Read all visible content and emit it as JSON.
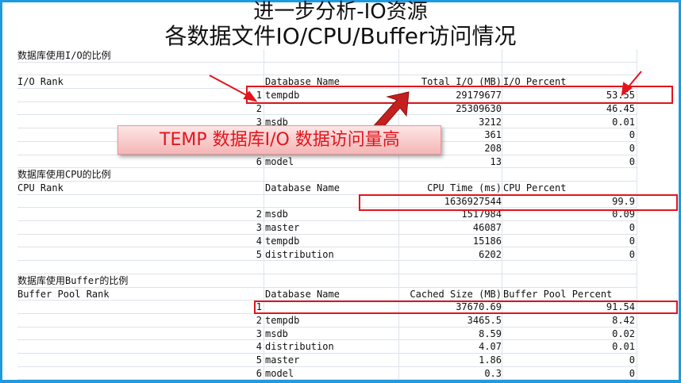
{
  "title_line1": "进一步分析-IO资源",
  "title_line2": "各数据文件IO/CPU/Buffer访问情况",
  "io": {
    "section_title": "数据库使用I/O的比例",
    "rank_header": "I/O Rank",
    "headers": [
      "Database Name",
      "Total I/O (MB)",
      "I/O Percent"
    ],
    "rows": [
      {
        "rank": "1",
        "name": "tempdb",
        "value": "29179677",
        "percent": "53.55"
      },
      {
        "rank": "2",
        "name": "",
        "value": "25309630",
        "percent": "46.45"
      },
      {
        "rank": "3",
        "name": "msdb",
        "value": "3212",
        "percent": "0.01"
      },
      {
        "rank": "",
        "name": "",
        "value": "361",
        "percent": "0"
      },
      {
        "rank": "",
        "name": "",
        "value": "208",
        "percent": "0"
      },
      {
        "rank": "6",
        "name": "model",
        "value": "13",
        "percent": "0"
      }
    ]
  },
  "cpu": {
    "section_title": "数据库使用CPU的比例",
    "rank_header": "CPU Rank",
    "headers": [
      "Database Name",
      "CPU Time (ms)",
      "CPU Percent"
    ],
    "rows": [
      {
        "rank": "",
        "name": "",
        "value": "1636927544",
        "percent": "99.9"
      },
      {
        "rank": "2",
        "name": "msdb",
        "value": "1517984",
        "percent": "0.09"
      },
      {
        "rank": "3",
        "name": "master",
        "value": "46087",
        "percent": "0"
      },
      {
        "rank": "4",
        "name": "tempdb",
        "value": "15186",
        "percent": "0"
      },
      {
        "rank": "5",
        "name": "distribution",
        "value": "6202",
        "percent": "0"
      }
    ]
  },
  "buffer": {
    "section_title": "数据库使用Buffer的比例",
    "rank_header": "Buffer Pool Rank",
    "headers": [
      "Database Name",
      "Cached Size (MB)",
      "Buffer Pool Percent"
    ],
    "rows": [
      {
        "rank": "1",
        "name": "",
        "value": "37670.69",
        "percent": "91.54"
      },
      {
        "rank": "2",
        "name": "tempdb",
        "value": "3465.5",
        "percent": "8.42"
      },
      {
        "rank": "3",
        "name": "msdb",
        "value": "8.59",
        "percent": "0.02"
      },
      {
        "rank": "4",
        "name": "distribution",
        "value": "4.07",
        "percent": "0.01"
      },
      {
        "rank": "5",
        "name": "master",
        "value": "1.86",
        "percent": "0"
      },
      {
        "rank": "6",
        "name": "model",
        "value": "0.3",
        "percent": "0"
      }
    ]
  },
  "callout": "TEMP 数据库I/O 数据访问量高",
  "colors": {
    "frame": "#1e9be0",
    "highlight": "#e3141b"
  }
}
